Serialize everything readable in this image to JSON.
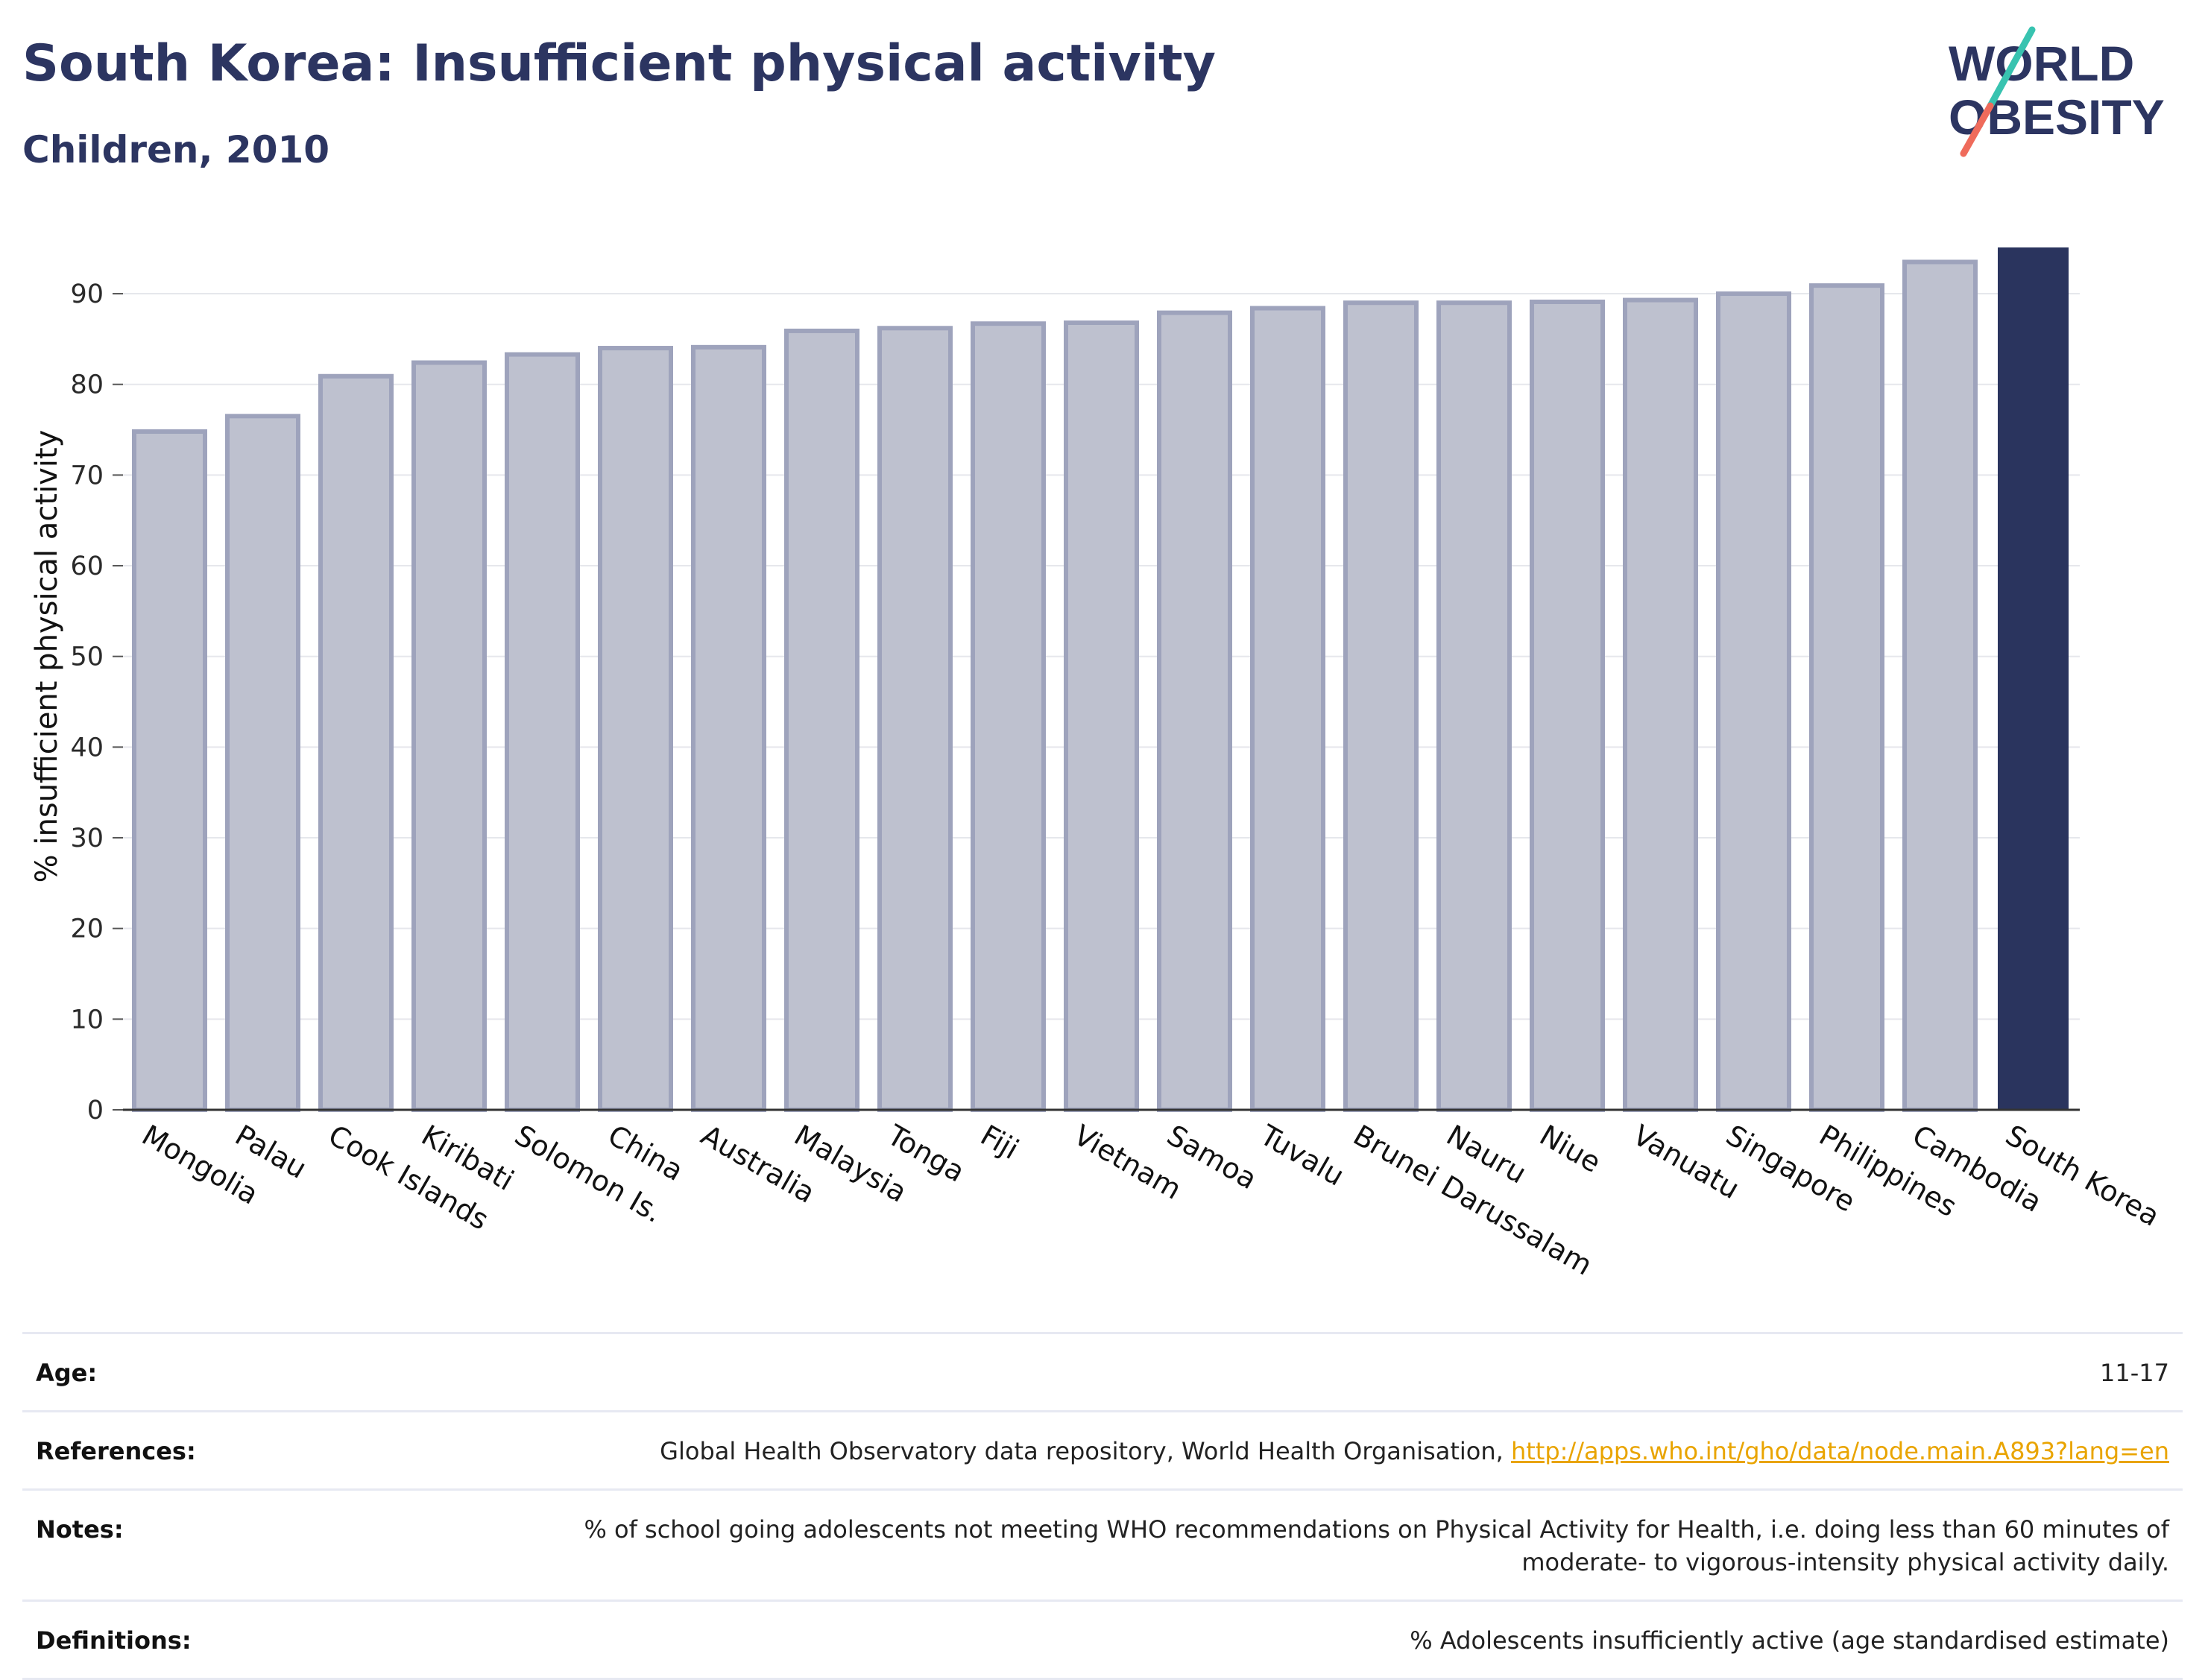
{
  "title": "South Korea: Insufficient physical activity",
  "subtitle": "Children, 2010",
  "logo": {
    "line1": "WORLD",
    "line2": "OBESITY"
  },
  "colors": {
    "bar": "#bec1cf",
    "bar_border": "#9ea3bc",
    "highlight": "#2a345e",
    "title": "#2c3561",
    "link": "#e9a400"
  },
  "chart_data": {
    "type": "bar",
    "categories": [
      "Mongolia",
      "Palau",
      "Cook Islands",
      "Kiribati",
      "Solomon Is.",
      "China",
      "Australia",
      "Malaysia",
      "Tonga",
      "Fiji",
      "Vietnam",
      "Samoa",
      "Tuvalu",
      "Brunei Darussalam",
      "Nauru",
      "Niue",
      "Vanuatu",
      "Singapore",
      "Philippines",
      "Cambodia",
      "South Korea"
    ],
    "values": [
      74.8,
      76.5,
      80.9,
      82.4,
      83.3,
      84.0,
      84.1,
      85.9,
      86.2,
      86.7,
      86.8,
      87.9,
      88.4,
      89.0,
      89.0,
      89.1,
      89.3,
      90.0,
      90.9,
      93.5,
      95.1
    ],
    "highlight": "South Korea",
    "ylabel": "% insufficient physical activity",
    "xlabel": "",
    "ylim": [
      0,
      95.1
    ],
    "yticks": [
      0,
      10,
      20,
      30,
      40,
      50,
      60,
      70,
      80,
      90
    ],
    "grid": true
  },
  "meta": [
    {
      "key": "Age:",
      "value": "11-17"
    },
    {
      "key": "References:",
      "value": "Global Health Observatory data repository, World Health Organisation, ",
      "link": "http://apps.who.int/gho/data/node.main.A893?lang=en"
    },
    {
      "key": "Notes:",
      "value": "% of school going adolescents not meeting WHO recommendations on Physical Activity for Health, i.e. doing less than 60 minutes of moderate- to vigorous-intensity physical activity daily."
    },
    {
      "key": "Definitions:",
      "value": "% Adolescents insufficiently active (age standardised estimate)"
    }
  ]
}
